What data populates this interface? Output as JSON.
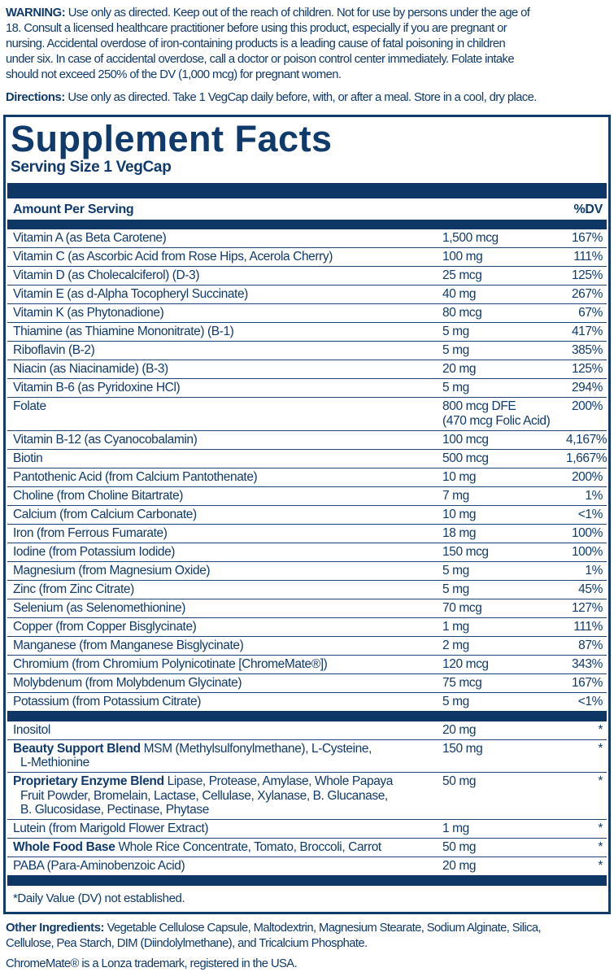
{
  "colors": {
    "navy_text": "#103a6b",
    "navy_bar": "#0e3766",
    "hairline": "#1d4473",
    "background": "#ffffff"
  },
  "warning": {
    "label": "WARNING:",
    "text": "Use only as directed.  Keep out of the reach of children. Not for use by persons under the age of\n18.  Consult a licensed healthcare practitioner before using this product, especially if you are pregnant or\nnursing.  Accidental overdose of iron-containing products is a leading cause of fatal poisoning in children\nunder six.  In case of accidental overdose, call a doctor or poison control center immediately. Folate intake\nshould not exceed 250% of the DV (1,000 mcg) for pregnant women."
  },
  "directions": {
    "label": "Directions:",
    "text": "Use only as directed. Take 1 VegCap daily before, with, or after a meal. Store in a cool, dry place."
  },
  "panel": {
    "title": "Supplement Facts",
    "serving_size": "Serving Size 1 VegCap",
    "header": {
      "amount": "Amount Per Serving",
      "dv": "%DV"
    },
    "rows": [
      {
        "name": "Vitamin A (as Beta Carotene)",
        "amount": "1,500 mcg",
        "dv": "167%"
      },
      {
        "name": "Vitamin C (as Ascorbic Acid from Rose Hips, Acerola Cherry)",
        "amount": "100 mg",
        "dv": "111%"
      },
      {
        "name": "Vitamin D (as Cholecalciferol) (D-3)",
        "amount": "25 mcg",
        "dv": "125%"
      },
      {
        "name": "Vitamin E (as d-Alpha Tocopheryl Succinate)",
        "amount": "40 mg",
        "dv": "267%"
      },
      {
        "name": "Vitamin K (as Phytonadione)",
        "amount": "80 mcg",
        "dv": "67%"
      },
      {
        "name": "Thiamine (as Thiamine Mononitrate) (B-1)",
        "amount": "5 mg",
        "dv": "417%"
      },
      {
        "name": "Riboflavin (B-2)",
        "amount": "5 mg",
        "dv": "385%"
      },
      {
        "name": "Niacin (as Niacinamide) (B-3)",
        "amount": "20 mg",
        "dv": "125%"
      },
      {
        "name": "Vitamin B-6 (as Pyridoxine HCl)",
        "amount": "5 mg",
        "dv": "294%"
      },
      {
        "name": "Folate",
        "amount": "800 mcg DFE",
        "amount2": "(470 mcg Folic Acid)",
        "dv": "200%"
      },
      {
        "name": "Vitamin B-12 (as Cyanocobalamin)",
        "amount": "100 mcg",
        "dv": "4,167%"
      },
      {
        "name": "Biotin",
        "amount": "500 mcg",
        "dv": "1,667%"
      },
      {
        "name": "Pantothenic Acid (from Calcium Pantothenate)",
        "amount": "10 mg",
        "dv": "200%"
      },
      {
        "name": "Choline (from Choline Bitartrate)",
        "amount": "7 mg",
        "dv": "1%"
      },
      {
        "name": "Calcium (from Calcium Carbonate)",
        "amount": "10 mg",
        "dv": "<1%"
      },
      {
        "name": "Iron (from Ferrous Fumarate)",
        "amount": "18 mg",
        "dv": "100%"
      },
      {
        "name": "Iodine (from Potassium Iodide)",
        "amount": "150 mcg",
        "dv": "100%"
      },
      {
        "name": "Magnesium (from Magnesium Oxide)",
        "amount": "5 mg",
        "dv": "1%"
      },
      {
        "name": "Zinc (from Zinc Citrate)",
        "amount": "5 mg",
        "dv": "45%"
      },
      {
        "name": "Selenium (as Selenomethionine)",
        "amount": "70 mcg",
        "dv": "127%"
      },
      {
        "name": "Copper (from Copper Bisglycinate)",
        "amount": "1 mg",
        "dv": "111%"
      },
      {
        "name": "Manganese (from Manganese Bisglycinate)",
        "amount": "2 mg",
        "dv": "87%"
      },
      {
        "name": "Chromium (from Chromium Polynicotinate [ChromeMate®])",
        "amount": "120 mcg",
        "dv": "343%"
      },
      {
        "name": "Molybdenum (from Molybdenum Glycinate)",
        "amount": "75 mcg",
        "dv": "167%"
      },
      {
        "name": "Potassium (from Potassium Citrate)",
        "amount": "5 mg",
        "dv": "<1%",
        "bar_after": true
      },
      {
        "name": "Inositol",
        "amount": "20 mg",
        "dv": "*"
      },
      {
        "prefix": "Beauty Support Blend",
        "name": " MSM (Methylsulfonylmethane), L-Cysteine,\nL-Methionine",
        "amount": "150 mg",
        "dv": "*"
      },
      {
        "prefix": "Proprietary Enzyme Blend",
        "name": " Lipase, Protease, Amylase, Whole Papaya\nFruit Powder, Bromelain, Lactase, Cellulase, Xylanase, B. Glucanase,\nB. Glucosidase, Pectinase, Phytase",
        "amount": "50 mg",
        "dv": "*"
      },
      {
        "name": "Lutein (from Marigold Flower Extract)",
        "amount": "1 mg",
        "dv": "*"
      },
      {
        "prefix": "Whole Food Base",
        "name": " Whole Rice Concentrate, Tomato, Broccoli, Carrot",
        "amount": "50 mg",
        "dv": "*"
      },
      {
        "name": "PABA (Para-Aminobenzoic Acid)",
        "amount": "20 mg",
        "dv": "*",
        "bar_after": true
      }
    ],
    "footnote": "*Daily Value (DV) not established."
  },
  "other_ingredients": {
    "label": "Other Ingredients:",
    "text": "Vegetable Cellulose Capsule, Maltodextrin, Magnesium Stearate, Sodium Alginate, Silica,\nCellulose, Pea Starch, DIM (Diindolylmethane), and Tricalcium Phosphate."
  },
  "trademark": "ChromeMate® is a Lonza trademark, registered in the USA."
}
